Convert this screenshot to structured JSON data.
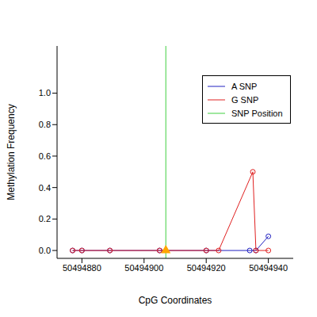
{
  "chart_data": {
    "type": "line",
    "xlabel": "CpG Coordinates",
    "ylabel": "Methylation Frequency",
    "xlim": [
      50494872,
      50494948
    ],
    "xticks": [
      50494880,
      50494900,
      50494920,
      50494940
    ],
    "ylim": [
      -0.05,
      1.3
    ],
    "yticks": [
      {
        "value": 0,
        "label": "0.0"
      },
      0.2,
      0.4,
      0.6,
      0.8,
      {
        "value": 1,
        "label": "1.0"
      }
    ],
    "legend": "upper right",
    "series": [
      {
        "name": "A SNP",
        "color": "#2020c0",
        "marker": "circle",
        "line_style": "solid",
        "x": [
          50494877,
          50494880,
          50494889,
          50494905,
          50494920,
          50494934,
          50494936,
          50494940
        ],
        "values": [
          0,
          0,
          0,
          0,
          0,
          0,
          0,
          0.09
        ]
      },
      {
        "name": "G SNP",
        "color": "#e02020",
        "marker": "circle",
        "line_style": "solid",
        "x": [
          50494877,
          50494880,
          50494889,
          50494905,
          50494920,
          50494924,
          50494935,
          50494936,
          50494940
        ],
        "values": [
          0,
          0,
          0,
          0,
          0,
          0,
          0.5,
          0,
          0
        ]
      },
      {
        "name": "SNP Position",
        "type": "vline",
        "color": "#40d040",
        "line_style": "solid",
        "x": [
          50494907
        ]
      },
      {
        "type": "scatter",
        "marker": "triangle",
        "color": "#ffa500",
        "x": [
          50494907
        ],
        "values": [
          0
        ]
      }
    ]
  }
}
